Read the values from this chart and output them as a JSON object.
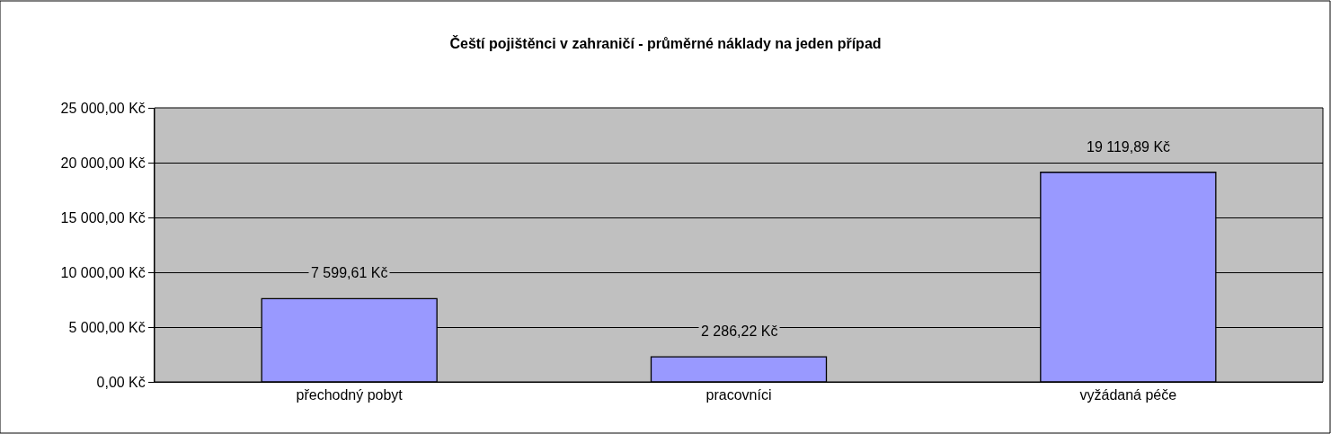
{
  "chart_data": {
    "type": "bar",
    "title": "Čeští pojištěnci v zahraničí - průměrné náklady na jeden případ",
    "categories": [
      "přechodný pobyt",
      "pracovníci",
      "vyžádaná péče"
    ],
    "values": [
      7599.61,
      2286.22,
      19119.89
    ],
    "value_labels": [
      "7 599,61 Kč",
      "2 286,22 Kč",
      "19 119,89 Kč"
    ],
    "color": "#9999ff",
    "ylim": [
      0,
      25000
    ],
    "yticks": [
      {
        "value": 0,
        "label": "0,00 Kč"
      },
      {
        "value": 5000,
        "label": "5 000,00 Kč"
      },
      {
        "value": 10000,
        "label": "10 000,00 Kč"
      },
      {
        "value": 15000,
        "label": "15 000,00 Kč"
      },
      {
        "value": 20000,
        "label": "20 000,00 Kč"
      },
      {
        "value": 25000,
        "label": "25 000,00 Kč"
      }
    ],
    "grid": "y"
  }
}
